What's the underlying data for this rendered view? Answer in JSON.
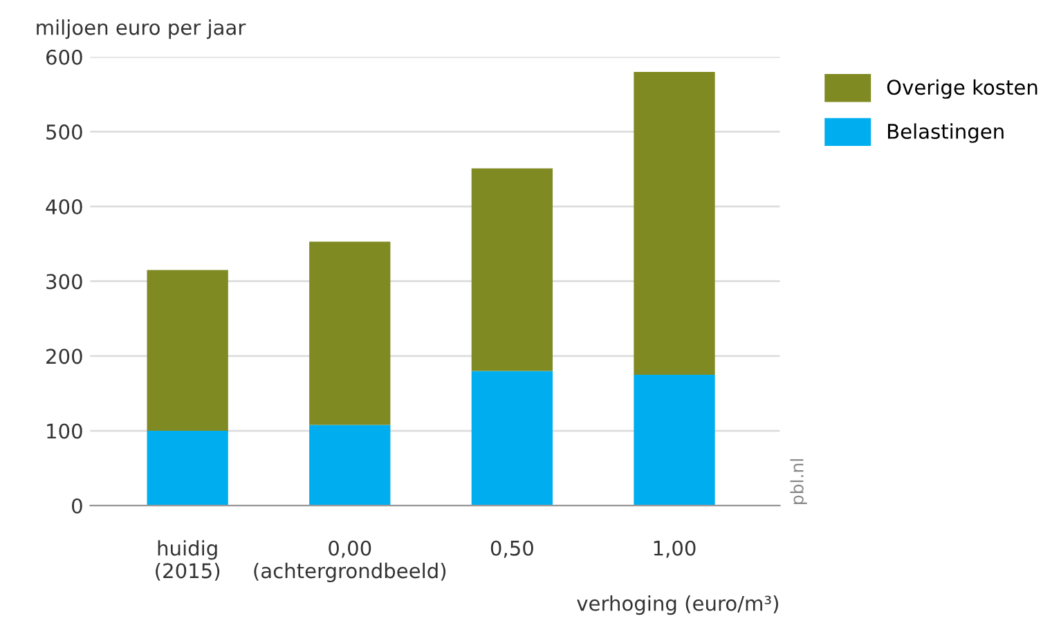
{
  "chart_data": {
    "type": "bar",
    "stacked": true,
    "ylabel": "miljoen euro per jaar",
    "xlabel": "verhoging (euro/m³)",
    "categories": [
      "huidig\n(2015)",
      "0,00\n(achtergrondbeeld)",
      "0,50",
      "1,00"
    ],
    "series": [
      {
        "name": "Belastingen",
        "color": "#00aeef",
        "values": [
          100,
          108,
          180,
          175
        ]
      },
      {
        "name": "Overige kosten",
        "color": "#808a22",
        "values": [
          215,
          245,
          271,
          405
        ]
      }
    ],
    "ylim": [
      0,
      600
    ],
    "yticks": [
      0,
      100,
      200,
      300,
      400,
      500,
      600
    ],
    "grid": "y",
    "legend": "top right",
    "annotations": [
      "pbl.nl"
    ]
  }
}
